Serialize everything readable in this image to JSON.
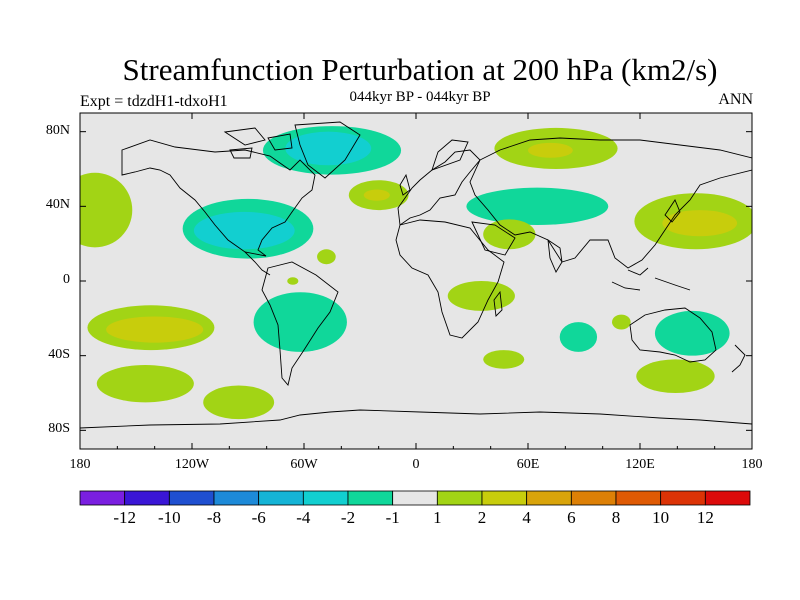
{
  "title": "Streamfunction Perturbation at 200 hPa (km2/s)",
  "subtitle": "044kyr BP - 044kyr BP",
  "left_label": "Expt = tdzdH1-tdxoH1",
  "right_label": "ANN",
  "map": {
    "projection": "cylindrical equidistant",
    "lon_range": [
      -180,
      180
    ],
    "lat_range": [
      -90,
      90
    ],
    "background_color": "#e6e6e6",
    "lat_ticks": [
      {
        "value": 80,
        "label": "80N"
      },
      {
        "value": 40,
        "label": "40N"
      },
      {
        "value": 0,
        "label": "0"
      },
      {
        "value": -40,
        "label": "40S"
      },
      {
        "value": -80,
        "label": "80S"
      }
    ],
    "lon_ticks": [
      {
        "value": -180,
        "label": "180"
      },
      {
        "value": -120,
        "label": "120W"
      },
      {
        "value": -60,
        "label": "60W"
      },
      {
        "value": 0,
        "label": "0"
      },
      {
        "value": 60,
        "label": "60E"
      },
      {
        "value": 120,
        "label": "120E"
      },
      {
        "value": 180,
        "label": "180"
      }
    ]
  },
  "colorbar": {
    "colors": [
      "#7a1fe0",
      "#3a16d6",
      "#1f4fd0",
      "#1d8ad8",
      "#15b4d6",
      "#12cfd0",
      "#10d79a",
      "#e6e6e6",
      "#a2d415",
      "#c8cd0c",
      "#d9a40a",
      "#dd8006",
      "#df5a04",
      "#dc3306",
      "#dc0a0a"
    ],
    "labels": [
      "-12",
      "-10",
      "-8",
      "-6",
      "-4",
      "-2",
      "-1",
      "1",
      "2",
      "4",
      "6",
      "8",
      "10",
      "12"
    ]
  },
  "regions": [
    {
      "name": "arctic-canada-negative",
      "level": "-2",
      "lon": -45,
      "lat": 70,
      "rlon": 37,
      "rlat": 13,
      "color": "#10d79a"
    },
    {
      "name": "arctic-canada-core",
      "level": "-4",
      "lon": -47,
      "lat": 71,
      "rlon": 23,
      "rlat": 9,
      "color": "#12cfd0"
    },
    {
      "name": "north-america-negative",
      "level": "-2",
      "lon": -90,
      "lat": 28,
      "rlon": 35,
      "rlat": 16,
      "color": "#10d79a"
    },
    {
      "name": "north-america-core",
      "level": "-4",
      "lon": -92,
      "lat": 27,
      "rlon": 27,
      "rlat": 10,
      "color": "#12cfd0"
    },
    {
      "name": "north-pacific-positive",
      "level": "2",
      "lon": -172,
      "lat": 38,
      "rlon": 20,
      "rlat": 20,
      "color": "#a2d415"
    },
    {
      "name": "atlantic-positive",
      "level": "2",
      "lon": -20,
      "lat": 46,
      "rlon": 16,
      "rlat": 8,
      "color": "#a2d415"
    },
    {
      "name": "atlantic-core",
      "level": "4",
      "lon": -21,
      "lat": 46,
      "rlon": 7,
      "rlat": 3,
      "color": "#c8cd0c"
    },
    {
      "name": "siberia-positive",
      "level": "2",
      "lon": 75,
      "lat": 71,
      "rlon": 33,
      "rlat": 11,
      "color": "#a2d415"
    },
    {
      "name": "siberia-core",
      "level": "4",
      "lon": 72,
      "lat": 70,
      "rlon": 12,
      "rlat": 4,
      "color": "#c8cd0c"
    },
    {
      "name": "eurasia-negative",
      "level": "-2",
      "lon": 65,
      "lat": 40,
      "rlon": 38,
      "rlat": 10,
      "color": "#10d79a"
    },
    {
      "name": "middle-east-positive",
      "level": "2",
      "lon": 50,
      "lat": 25,
      "rlon": 14,
      "rlat": 8,
      "color": "#a2d415"
    },
    {
      "name": "east-asia-positive",
      "level": "2",
      "lon": 150,
      "lat": 32,
      "rlon": 33,
      "rlat": 15,
      "color": "#a2d415"
    },
    {
      "name": "east-asia-core",
      "level": "4",
      "lon": 152,
      "lat": 31,
      "rlon": 20,
      "rlat": 7,
      "color": "#c8cd0c"
    },
    {
      "name": "africa-south-positive",
      "level": "2",
      "lon": 35,
      "lat": -8,
      "rlon": 18,
      "rlat": 8,
      "color": "#a2d415"
    },
    {
      "name": "south-pacific-positive",
      "level": "2",
      "lon": -142,
      "lat": -25,
      "rlon": 34,
      "rlat": 12,
      "color": "#a2d415"
    },
    {
      "name": "south-pacific-core",
      "level": "4",
      "lon": -140,
      "lat": -26,
      "rlon": 26,
      "rlat": 7,
      "color": "#c8cd0c"
    },
    {
      "name": "south-america-negative",
      "level": "-2",
      "lon": -62,
      "lat": -22,
      "rlon": 25,
      "rlat": 16,
      "color": "#10d79a"
    },
    {
      "name": "southeast-pacific-positive",
      "level": "2",
      "lon": -145,
      "lat": -55,
      "rlon": 26,
      "rlat": 10,
      "color": "#a2d415"
    },
    {
      "name": "south-atlantic-positive",
      "level": "2",
      "lon": -95,
      "lat": -65,
      "rlon": 19,
      "rlat": 9,
      "color": "#a2d415"
    },
    {
      "name": "southern-ocean-positive",
      "level": "2",
      "lon": 47,
      "lat": -42,
      "rlon": 11,
      "rlat": 5,
      "color": "#a2d415"
    },
    {
      "name": "indian-ocean-negative",
      "level": "-2",
      "lon": 87,
      "lat": -30,
      "rlon": 10,
      "rlat": 8,
      "color": "#10d79a"
    },
    {
      "name": "australia-negative",
      "level": "-2",
      "lon": 148,
      "lat": -28,
      "rlon": 20,
      "rlat": 12,
      "color": "#10d79a"
    },
    {
      "name": "australia-positive",
      "level": "2",
      "lon": 139,
      "lat": -51,
      "rlon": 21,
      "rlat": 9,
      "color": "#a2d415"
    },
    {
      "name": "west-australia-positive",
      "level": "2",
      "lon": 110,
      "lat": -22,
      "rlon": 5,
      "rlat": 4,
      "color": "#a2d415"
    },
    {
      "name": "atlantic-tropics-positive",
      "level": "2",
      "lon": -48,
      "lat": 13,
      "rlon": 5,
      "rlat": 4,
      "color": "#a2d415"
    },
    {
      "name": "atlantic-equator-positive",
      "level": "2",
      "lon": -66,
      "lat": 0,
      "rlon": 3,
      "rlat": 2,
      "color": "#a2d415"
    }
  ]
}
